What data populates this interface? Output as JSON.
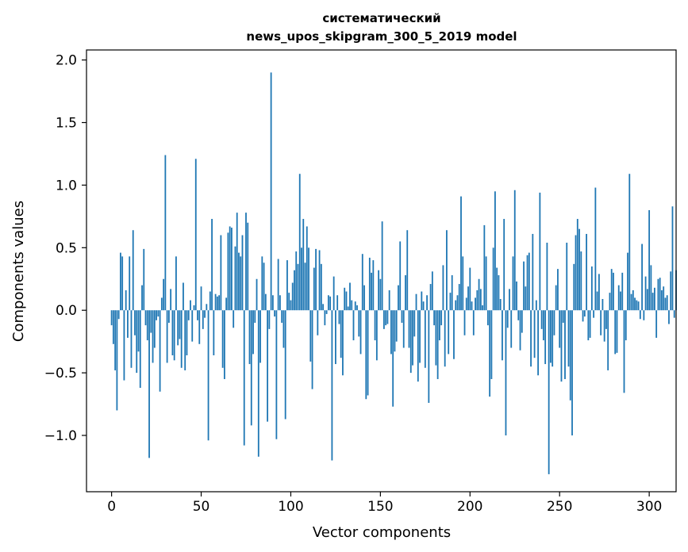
{
  "chart_data": {
    "type": "bar",
    "title_lines": [
      "систематический",
      "news_upos_skipgram_300_5_2019 model"
    ],
    "xlabel": "Vector components",
    "ylabel": "Components values",
    "xlim": [
      -14,
      315
    ],
    "ylim": [
      -1.45,
      2.08
    ],
    "xticks": [
      0,
      50,
      100,
      150,
      200,
      250,
      300
    ],
    "yticks": [
      2.0,
      1.5,
      1.0,
      0.5,
      0.0,
      -0.5,
      -1.0
    ],
    "ytick_labels": [
      "2.0",
      "1.5",
      "1.0",
      "0.5",
      "0.0",
      "−0.5",
      "−1.0"
    ],
    "bar_color": "#1f77b4",
    "grid": false,
    "values": [
      -0.12,
      -0.27,
      -0.48,
      -0.8,
      -0.07,
      0.46,
      0.43,
      -0.56,
      0.16,
      -0.22,
      0.43,
      -0.46,
      0.64,
      -0.2,
      -0.5,
      -0.33,
      -0.62,
      0.2,
      0.49,
      -0.12,
      -0.24,
      -1.18,
      -0.18,
      -0.42,
      -0.3,
      -0.08,
      -0.05,
      -0.65,
      0.1,
      0.25,
      1.24,
      -0.42,
      -0.1,
      0.17,
      -0.36,
      -0.4,
      0.43,
      -0.28,
      -0.23,
      -0.46,
      0.22,
      -0.48,
      -0.36,
      -0.08,
      0.08,
      -0.25,
      0.04,
      1.21,
      -0.08,
      -0.27,
      0.19,
      -0.15,
      -0.06,
      0.05,
      -1.04,
      0.15,
      0.73,
      -0.36,
      0.13,
      0.11,
      0.12,
      0.6,
      -0.46,
      -0.55,
      0.1,
      0.62,
      0.67,
      0.66,
      -0.14,
      0.51,
      0.78,
      0.46,
      0.43,
      0.6,
      -1.08,
      0.78,
      0.7,
      -0.43,
      -0.92,
      -0.35,
      -0.1,
      0.25,
      -1.17,
      -0.42,
      0.43,
      0.38,
      0.13,
      -0.89,
      -0.15,
      1.9,
      0.12,
      -0.05,
      -1.03,
      0.41,
      0.12,
      -0.1,
      -0.3,
      -0.87,
      0.4,
      0.14,
      0.08,
      0.22,
      0.32,
      0.47,
      0.37,
      1.09,
      0.5,
      0.73,
      0.38,
      0.67,
      0.5,
      -0.41,
      -0.63,
      0.34,
      0.49,
      -0.2,
      0.48,
      0.37,
      0.05,
      -0.12,
      -0.03,
      0.12,
      0.11,
      -1.2,
      0.27,
      -0.43,
      0.12,
      -0.11,
      -0.38,
      -0.52,
      0.18,
      0.15,
      0.03,
      0.22,
      0.08,
      -0.24,
      0.07,
      0.04,
      -0.21,
      -0.35,
      0.45,
      0.2,
      -0.71,
      -0.68,
      0.42,
      0.3,
      0.4,
      -0.24,
      -0.4,
      0.32,
      0.25,
      0.71,
      -0.15,
      -0.12,
      -0.11,
      0.16,
      -0.35,
      -0.77,
      -0.33,
      -0.25,
      0.2,
      0.55,
      -0.1,
      -0.3,
      0.28,
      0.64,
      -0.3,
      -0.5,
      -0.44,
      -0.21,
      0.13,
      -0.57,
      -0.42,
      0.15,
      0.07,
      -0.46,
      0.12,
      -0.74,
      0.21,
      0.31,
      -0.12,
      -0.44,
      -0.55,
      -0.24,
      -0.12,
      0.36,
      -0.45,
      0.64,
      -0.35,
      0.14,
      0.28,
      -0.39,
      0.08,
      0.12,
      0.21,
      0.91,
      0.43,
      -0.2,
      0.1,
      0.19,
      0.34,
      0.07,
      -0.2,
      0.1,
      0.16,
      0.25,
      0.17,
      0.04,
      0.68,
      0.43,
      -0.12,
      -0.69,
      -0.55,
      0.5,
      0.95,
      0.34,
      0.28,
      0.09,
      -0.4,
      0.73,
      -1.0,
      -0.14,
      0.17,
      -0.3,
      0.43,
      0.96,
      0.23,
      -0.08,
      -0.32,
      -0.18,
      0.39,
      0.19,
      0.44,
      0.46,
      -0.45,
      0.61,
      -0.38,
      0.08,
      -0.52,
      0.94,
      -0.15,
      -0.24,
      -0.43,
      0.54,
      -1.31,
      -0.42,
      -0.45,
      -0.2,
      0.2,
      0.33,
      -0.3,
      -0.57,
      -0.1,
      -0.55,
      0.54,
      -0.45,
      -0.72,
      -1.0,
      0.37,
      0.6,
      0.73,
      0.65,
      0.47,
      -0.09,
      -0.05,
      0.61,
      -0.24,
      -0.22,
      0.35,
      -0.06,
      0.98,
      0.15,
      0.29,
      -0.2,
      0.09,
      -0.25,
      -0.15,
      -0.48,
      0.14,
      0.33,
      0.3,
      -0.35,
      -0.34,
      0.2,
      0.15,
      0.3,
      -0.66,
      -0.24,
      0.46,
      1.09,
      0.13,
      0.16,
      0.1,
      0.08,
      0.07,
      -0.07,
      0.53,
      -0.08,
      0.27,
      0.17,
      0.8,
      0.36,
      0.14,
      0.18,
      -0.22,
      0.25,
      0.26,
      0.16,
      0.19,
      0.1,
      0.12,
      -0.11,
      0.31,
      0.83,
      -0.06,
      0.32
    ]
  }
}
